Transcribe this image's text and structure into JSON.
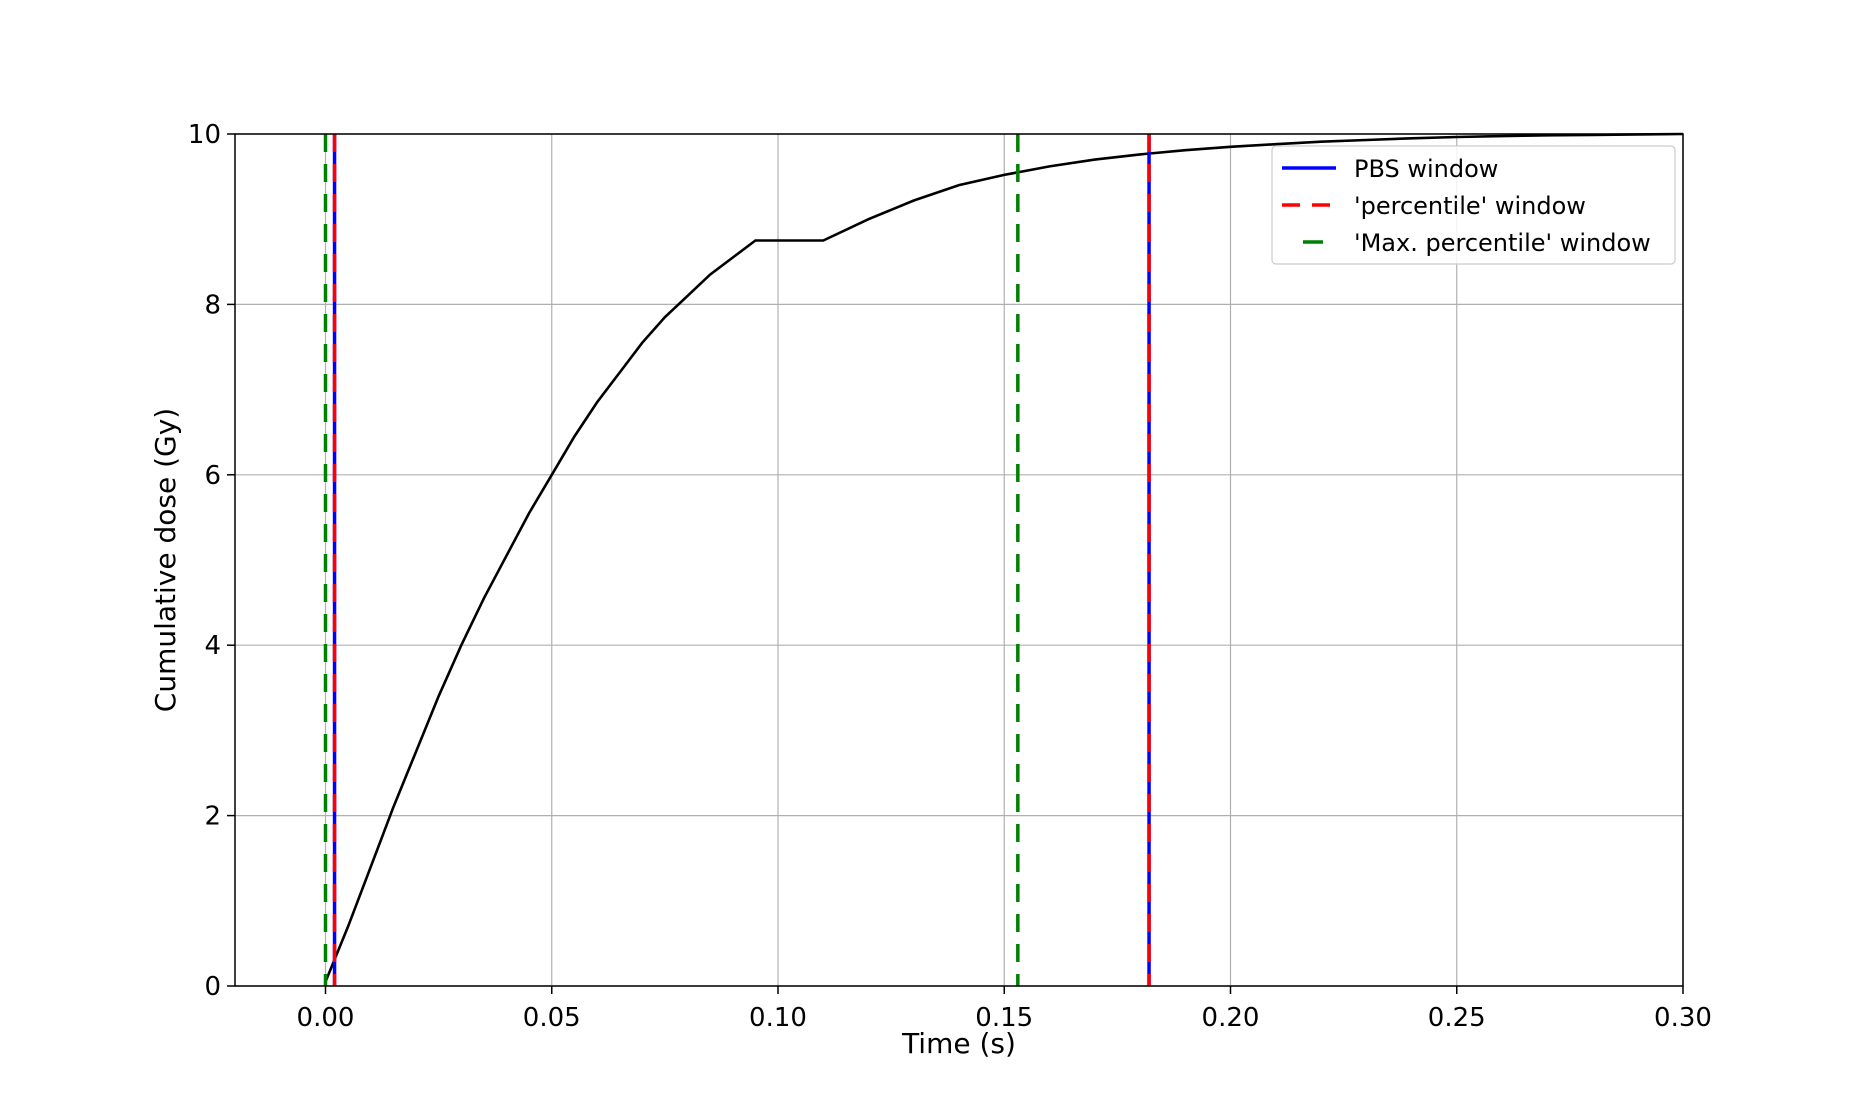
{
  "chart_data": {
    "type": "line",
    "title": "",
    "xlabel": "Time (s)",
    "ylabel": "Cumulative dose (Gy)",
    "xlim": [
      -0.02,
      0.3
    ],
    "ylim": [
      0,
      10
    ],
    "xticks": [
      0.0,
      0.05,
      0.1,
      0.15,
      0.2,
      0.25,
      0.3
    ],
    "xtick_labels": [
      "0.00",
      "0.05",
      "0.10",
      "0.15",
      "0.20",
      "0.25",
      "0.30"
    ],
    "yticks": [
      0,
      2,
      4,
      6,
      8,
      10
    ],
    "ytick_labels": [
      "0",
      "2",
      "4",
      "6",
      "8",
      "10"
    ],
    "grid": true,
    "legend_position": "top-right",
    "series": [
      {
        "kind": "curve",
        "color": "#000000",
        "x": [
          0.0,
          0.005,
          0.01,
          0.015,
          0.02,
          0.025,
          0.03,
          0.035,
          0.04,
          0.045,
          0.05,
          0.055,
          0.06,
          0.065,
          0.07,
          0.075,
          0.08,
          0.085,
          0.09,
          0.095,
          0.1,
          0.11,
          0.12,
          0.13,
          0.14,
          0.15,
          0.16,
          0.17,
          0.18,
          0.19,
          0.2,
          0.21,
          0.22,
          0.23,
          0.24,
          0.25,
          0.26,
          0.27,
          0.28,
          0.29,
          0.3
        ],
        "y": [
          0.05,
          0.7,
          1.4,
          2.1,
          2.75,
          3.4,
          4.0,
          4.55,
          5.05,
          5.55,
          6.0,
          6.45,
          6.85,
          7.2,
          7.55,
          7.85,
          8.1,
          8.35,
          8.55,
          8.75,
          8.35,
          8.7,
          9.0,
          9.22,
          9.4,
          9.52,
          9.62,
          9.7,
          9.76,
          9.81,
          9.85,
          9.88,
          9.91,
          9.93,
          9.95,
          9.965,
          9.975,
          9.985,
          9.99,
          9.995,
          10.0
        ]
      },
      {
        "name": "PBS window",
        "kind": "vline",
        "style": "solid",
        "color": "#0000ff",
        "x": [
          0.002,
          0.182
        ]
      },
      {
        "name": "'percentile' window",
        "kind": "vline",
        "style": "dashed",
        "color": "#ff0000",
        "x": [
          0.002,
          0.182
        ]
      },
      {
        "name": "'Max. percentile' window",
        "kind": "vline",
        "style": "dashed",
        "color": "#008000",
        "x": [
          0.0,
          0.153
        ]
      }
    ]
  }
}
